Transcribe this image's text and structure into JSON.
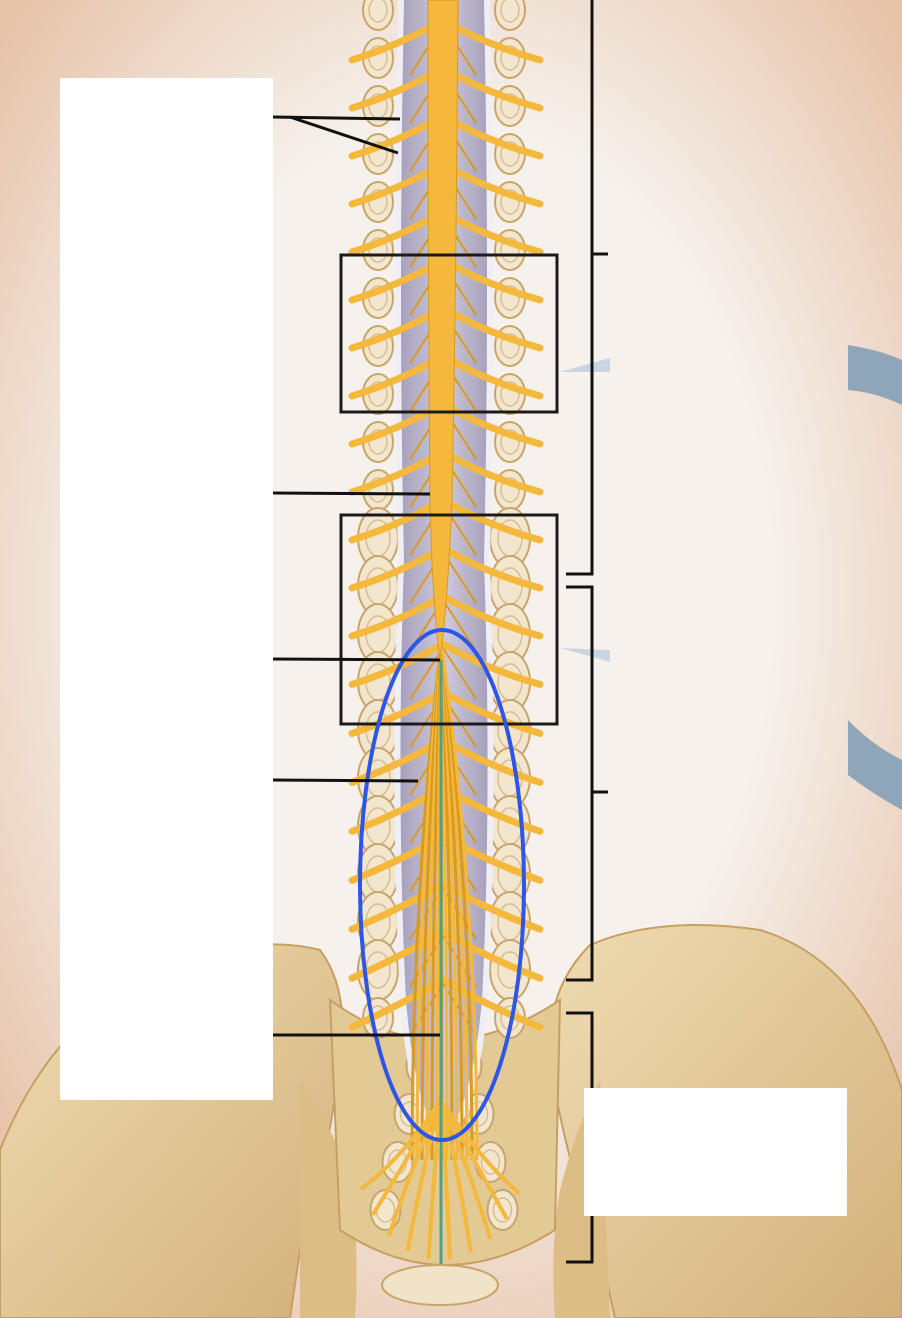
{
  "figure": {
    "subject": "spinal-cord-cauda-equina-anatomy",
    "colors": {
      "background": "#f6f1ec",
      "skin_shadow": "#e9c6ad",
      "bone": "#e7cf9f",
      "bone_dark": "#c9a56c",
      "bone_spongy": "#f2e6cf",
      "nerve": "#f3b83c",
      "nerve_dark": "#d99a1f",
      "dura": "#b9b3c9",
      "dura_edge": "#efeef4",
      "canal": "#8e88a5",
      "filum": "#4fa088",
      "highlight_ellipse": "#2d55e6",
      "leader_line": "#111111",
      "box_outline": "#1a1a1a",
      "arrow_blue": "#8fa6b8"
    }
  },
  "label_boxes": {
    "left": {
      "text": ""
    },
    "right": {
      "text": ""
    }
  },
  "leader_lines": [
    {
      "target": "meninges"
    },
    {
      "target": "conus-medullaris"
    },
    {
      "target": "cauda-equina-start"
    },
    {
      "target": "cauda-equina"
    },
    {
      "target": "filum-terminale"
    }
  ],
  "brackets": [
    {
      "region": "thoracic"
    },
    {
      "region": "lumbar"
    },
    {
      "region": "sacral"
    }
  ]
}
